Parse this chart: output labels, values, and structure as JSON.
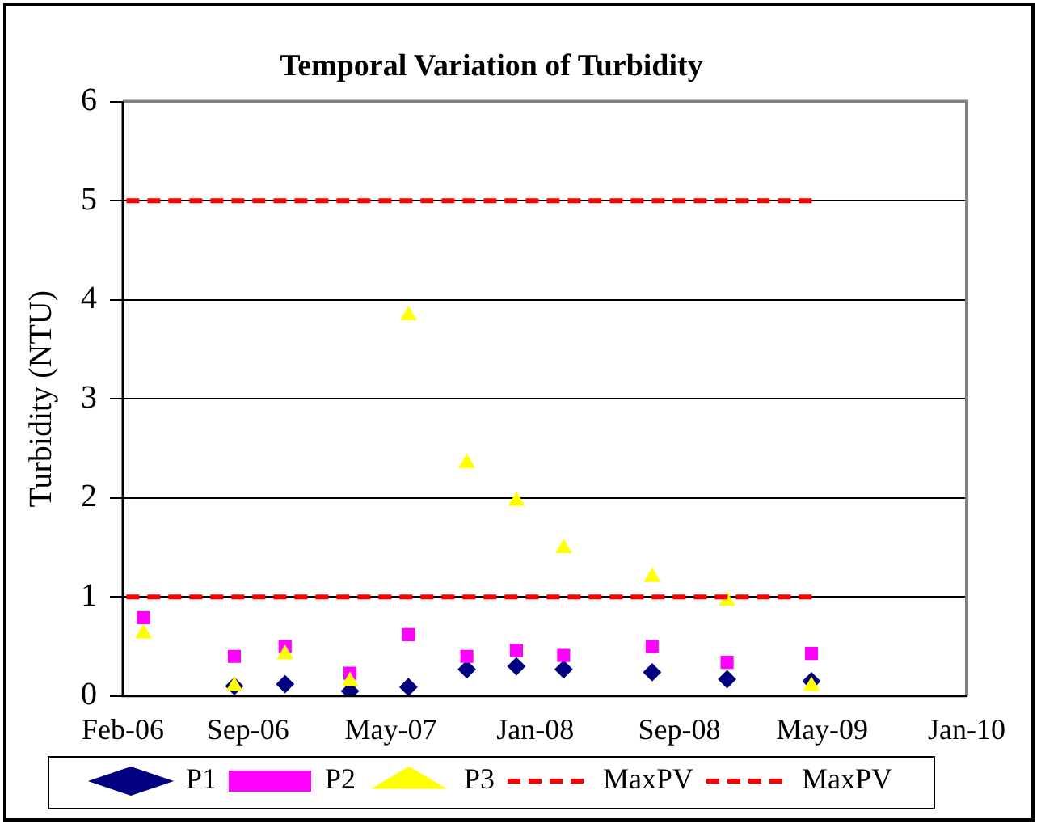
{
  "chart_data": {
    "type": "scatter",
    "title": "Temporal Variation of Turbidity",
    "ylabel": "Turbidity (NTU)",
    "x": [
      "2006-03-08",
      "2006-08-09",
      "2006-11-03",
      "2007-02-21",
      "2007-05-31",
      "2007-09-07",
      "2007-11-30",
      "2008-02-18",
      "2008-07-17",
      "2008-11-21",
      "2009-04-13"
    ],
    "xlim": [
      "2006-02-01",
      "2010-01-01"
    ],
    "xticks": [
      {
        "value": "2006-02-01",
        "label": "Feb-06"
      },
      {
        "value": "2006-09-01",
        "label": "Sep-06"
      },
      {
        "value": "2007-05-01",
        "label": "May-07"
      },
      {
        "value": "2008-01-01",
        "label": "Jan-08"
      },
      {
        "value": "2008-09-01",
        "label": "Sep-08"
      },
      {
        "value": "2009-05-01",
        "label": "May-09"
      },
      {
        "value": "2010-01-01",
        "label": "Jan-10"
      }
    ],
    "ylim": [
      0,
      6
    ],
    "yticks": [
      0,
      1,
      2,
      3,
      4,
      5,
      6
    ],
    "grid": "y",
    "legend": "bottom",
    "series": [
      {
        "name": "P1",
        "color": "#000080",
        "marker": "diamond",
        "values": [
          null,
          0.1,
          0.12,
          0.05,
          0.09,
          0.27,
          0.3,
          0.27,
          0.24,
          0.17,
          0.15
        ]
      },
      {
        "name": "P2",
        "color": "#ff00ff",
        "marker": "square",
        "values": [
          0.79,
          0.4,
          0.5,
          0.23,
          0.62,
          0.4,
          0.46,
          0.41,
          0.5,
          0.34,
          0.43
        ]
      },
      {
        "name": "P3",
        "color": "#ffff00",
        "marker": "triangle",
        "values": [
          0.63,
          0.1,
          0.42,
          0.15,
          3.84,
          2.35,
          1.97,
          1.49,
          1.2,
          0.96,
          0.1
        ]
      },
      {
        "name": "MaxPV",
        "type": "line",
        "color": "#ff0000",
        "line_style": "dashed",
        "marker": "none",
        "x": [
          "2006-02-07",
          "2009-04-15"
        ],
        "values": [
          5,
          5
        ]
      },
      {
        "name": "MaxPV",
        "type": "line",
        "color": "#ff0000",
        "line_style": "dashed",
        "marker": "none",
        "x": [
          "2006-02-07",
          "2009-04-15"
        ],
        "values": [
          1,
          1
        ]
      }
    ]
  }
}
